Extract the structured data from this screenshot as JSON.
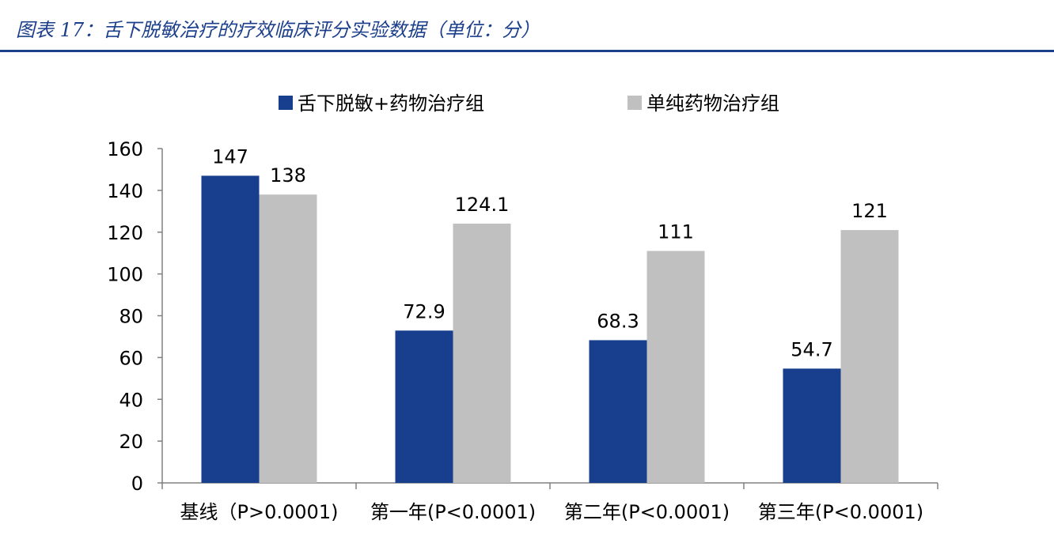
{
  "figure": {
    "title": "图表 17：舌下脱敏治疗的疗效临床评分实验数据（单位：分）"
  },
  "colors": {
    "series_1": "#173f8e",
    "series_2": "#c0c0c0",
    "header_rule": "#1b3f8b",
    "axis": "#808080"
  },
  "chart_data": {
    "type": "bar",
    "title": "",
    "xlabel": "",
    "ylabel": "",
    "categories": [
      "基线（P>0.0001)",
      "第一年(P<0.0001)",
      "第二年(P<0.0001)",
      "第三年(P<0.0001)"
    ],
    "series": [
      {
        "name": "舌下脱敏+药物治疗组",
        "values": [
          147,
          72.9,
          68.3,
          54.7
        ],
        "labels": [
          "147",
          "72.9",
          "68.3",
          "54.7"
        ]
      },
      {
        "name": "单纯药物治疗组",
        "values": [
          138,
          124.1,
          111,
          121
        ],
        "labels": [
          "138",
          "124.1",
          "111",
          "121"
        ]
      }
    ],
    "ylim": [
      0,
      160
    ],
    "yticks": [
      0,
      20,
      40,
      60,
      80,
      100,
      120,
      140,
      160
    ],
    "grid": false,
    "legend_position": "top"
  }
}
